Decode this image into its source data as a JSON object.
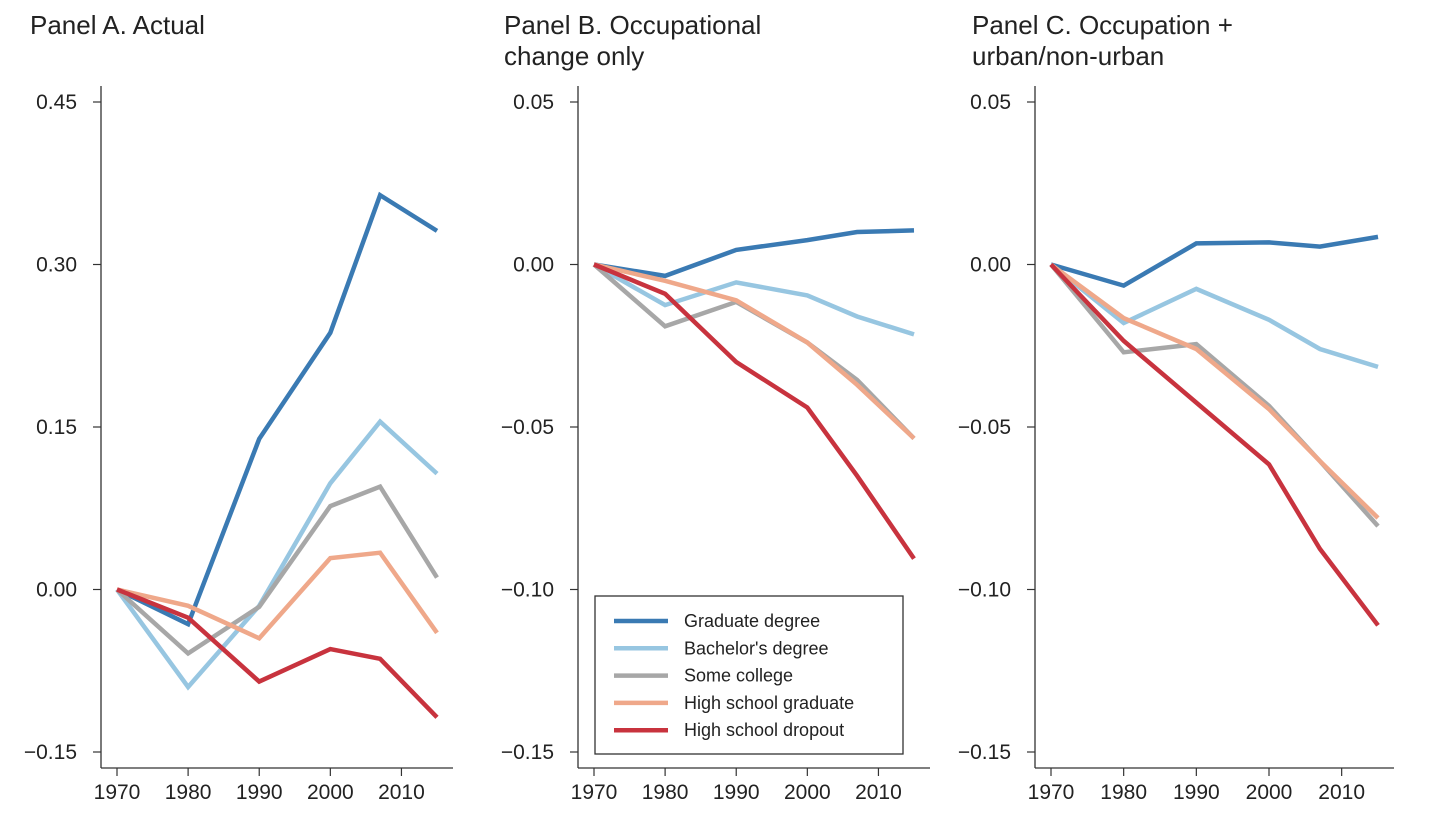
{
  "chart_data": [
    {
      "type": "line",
      "title_lines": [
        "Panel A. Actual"
      ],
      "ylim": [
        -0.15,
        0.45
      ],
      "yticks": [
        -0.15,
        0.0,
        0.15,
        0.3,
        0.45
      ],
      "ytick_labels": [
        "−0.15",
        "0.00",
        "0.15",
        "0.30",
        "0.45"
      ],
      "xlim": [
        1970,
        2015
      ],
      "xticks": [
        1970,
        1980,
        1990,
        2000,
        2010
      ],
      "xtick_labels": [
        "1970",
        "1980",
        "1990",
        "2000",
        "2010"
      ],
      "x": [
        1970,
        1980,
        1990,
        2000,
        2007,
        2015
      ],
      "grid": false,
      "series": [
        {
          "name": "Graduate degree",
          "values": [
            0.0,
            -0.032,
            0.139,
            0.237,
            0.364,
            0.331
          ]
        },
        {
          "name": "Bachelor's degree",
          "values": [
            0.0,
            -0.09,
            -0.015,
            0.098,
            0.155,
            0.107
          ]
        },
        {
          "name": "Some college",
          "values": [
            0.0,
            -0.059,
            -0.016,
            0.077,
            0.095,
            0.011
          ]
        },
        {
          "name": "High school graduate",
          "values": [
            0.0,
            -0.015,
            -0.045,
            0.029,
            0.034,
            -0.04
          ]
        },
        {
          "name": "High school dropout",
          "values": [
            0.0,
            -0.026,
            -0.085,
            -0.055,
            -0.064,
            -0.118
          ]
        }
      ]
    },
    {
      "type": "line",
      "title_lines": [
        "Panel B. Occupational",
        "change only"
      ],
      "ylim": [
        -0.15,
        0.05
      ],
      "yticks": [
        -0.15,
        -0.1,
        -0.05,
        0.0,
        0.05
      ],
      "ytick_labels": [
        "−0.15",
        "−0.10",
        "−0.05",
        "0.00",
        "0.05"
      ],
      "xlim": [
        1970,
        2015
      ],
      "xticks": [
        1970,
        1980,
        1990,
        2000,
        2010
      ],
      "xtick_labels": [
        "1970",
        "1980",
        "1990",
        "2000",
        "2010"
      ],
      "x": [
        1970,
        1980,
        1990,
        2000,
        2007,
        2015
      ],
      "grid": false,
      "legend_position": "bottom-right",
      "series": [
        {
          "name": "Graduate degree",
          "values": [
            0.0,
            -0.0035,
            0.0045,
            0.0075,
            0.01,
            0.0105
          ]
        },
        {
          "name": "Bachelor's degree",
          "values": [
            0.0,
            -0.0125,
            -0.0055,
            -0.0095,
            -0.016,
            -0.0215
          ]
        },
        {
          "name": "Some college",
          "values": [
            0.0,
            -0.019,
            -0.0115,
            -0.024,
            -0.0355,
            -0.0535
          ]
        },
        {
          "name": "High school graduate",
          "values": [
            0.0,
            -0.005,
            -0.011,
            -0.024,
            -0.037,
            -0.0535
          ]
        },
        {
          "name": "High school dropout",
          "values": [
            0.0,
            -0.009,
            -0.03,
            -0.044,
            -0.065,
            -0.0905
          ]
        }
      ]
    },
    {
      "type": "line",
      "title_lines": [
        "Panel C. Occupation +",
        "urban/non-urban"
      ],
      "ylim": [
        -0.15,
        0.05
      ],
      "yticks": [
        -0.15,
        -0.1,
        -0.05,
        0.0,
        0.05
      ],
      "ytick_labels": [
        "−0.15",
        "−0.10",
        "−0.05",
        "0.00",
        "0.05"
      ],
      "xlim": [
        1970,
        2015
      ],
      "xticks": [
        1970,
        1980,
        1990,
        2000,
        2010
      ],
      "xtick_labels": [
        "1970",
        "1980",
        "1990",
        "2000",
        "2010"
      ],
      "x": [
        1970,
        1980,
        1990,
        2000,
        2007,
        2015
      ],
      "grid": false,
      "series": [
        {
          "name": "Graduate degree",
          "values": [
            0.0,
            -0.0065,
            0.0065,
            0.0068,
            0.0055,
            0.0085
          ]
        },
        {
          "name": "Bachelor's degree",
          "values": [
            0.0,
            -0.018,
            -0.0075,
            -0.017,
            -0.026,
            -0.0315
          ]
        },
        {
          "name": "Some college",
          "values": [
            0.0,
            -0.027,
            -0.0245,
            -0.0435,
            -0.0605,
            -0.0805
          ]
        },
        {
          "name": "High school graduate",
          "values": [
            0.0,
            -0.0165,
            -0.026,
            -0.0445,
            -0.0605,
            -0.078
          ]
        },
        {
          "name": "High school dropout",
          "values": [
            0.0,
            -0.0235,
            -0.0425,
            -0.0615,
            -0.0875,
            -0.111
          ]
        }
      ]
    }
  ],
  "colors": {
    "Graduate degree": "#3a7ab3",
    "Bachelor's degree": "#97c6e1",
    "Some college": "#a7a7a7",
    "High school graduate": "#efa88a",
    "High school dropout": "#c8333e"
  }
}
